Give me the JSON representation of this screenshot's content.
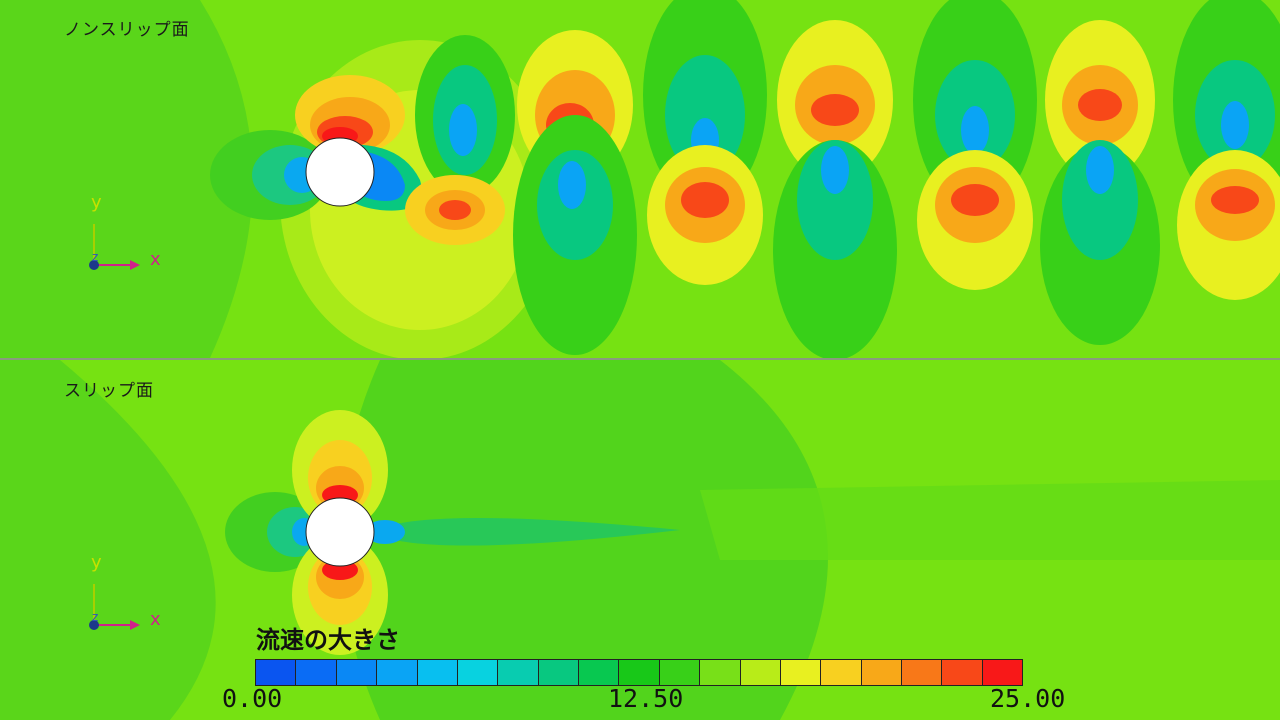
{
  "panels": {
    "top_label": "ノンスリップ面",
    "bottom_label": "スリップ面"
  },
  "axes": {
    "x_label": "x",
    "y_label": "y",
    "z_label": "z"
  },
  "legend": {
    "title": "流速の大きさ",
    "min_label": "0.00",
    "mid_label": "12.50",
    "max_label": "25.00",
    "colors": [
      "#0a55f0",
      "#0a6cf5",
      "#0a88f5",
      "#0aa4f5",
      "#08bff0",
      "#08d2e0",
      "#08ccb0",
      "#08c880",
      "#08c850",
      "#18c818",
      "#38d018",
      "#78e018",
      "#b8ec18",
      "#e8f020",
      "#f8d020",
      "#f8a818",
      "#f87818",
      "#f84818",
      "#f81818"
    ]
  }
}
